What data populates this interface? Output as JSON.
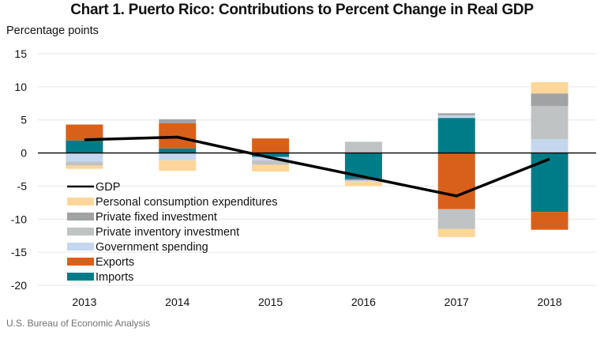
{
  "chart_data": {
    "type": "bar",
    "subtype": "stacked-bar-with-line",
    "title": "Chart 1. Puerto Rico: Contributions to Percent Change in Real GDP",
    "ylabel": "Percentage points",
    "xlabel": "",
    "source": "U.S. Bureau of Economic Analysis",
    "ylim": [
      -20,
      15
    ],
    "yticks": [
      15,
      10,
      5,
      0,
      -5,
      -10,
      -15,
      -20
    ],
    "grid": true,
    "legend_position": "bottom-left",
    "categories": [
      "2013",
      "2014",
      "2015",
      "2016",
      "2017",
      "2018"
    ],
    "series": [
      {
        "name": "Imports",
        "color": "#007C89",
        "values": [
          1.9,
          0.7,
          -0.6,
          -3.9,
          5.3,
          -8.9
        ]
      },
      {
        "name": "Exports",
        "color": "#D9601A",
        "values": [
          2.4,
          3.8,
          2.2,
          -0.2,
          -8.5,
          -2.7
        ]
      },
      {
        "name": "Government spending",
        "color": "#C5D7EE",
        "values": [
          -1.3,
          -1.1,
          -0.5,
          -0.3,
          0.4,
          2.1
        ]
      },
      {
        "name": "Private inventory investment",
        "color": "#C0C3C3",
        "values": [
          -0.6,
          0.0,
          -0.7,
          1.7,
          -3.0,
          5.0
        ]
      },
      {
        "name": "Private fixed investment",
        "color": "#A0A2A3",
        "values": [
          0.0,
          0.6,
          0.0,
          0.0,
          0.3,
          1.9
        ]
      },
      {
        "name": "Personal consumption expenditures",
        "color": "#FFD699",
        "values": [
          -0.5,
          -1.6,
          -1.0,
          -0.6,
          -1.2,
          1.7
        ]
      }
    ],
    "line": {
      "name": "GDP",
      "color": "#000000",
      "values": [
        2.0,
        2.4,
        -0.7,
        -3.6,
        -6.5,
        -0.9
      ]
    },
    "legend": [
      {
        "name": "GDP",
        "kind": "line",
        "color": "#000000"
      },
      {
        "name": "Personal consumption expenditures",
        "kind": "box",
        "color": "#FFD699"
      },
      {
        "name": "Private fixed investment",
        "kind": "box",
        "color": "#A0A2A3"
      },
      {
        "name": "Private inventory investment",
        "kind": "box",
        "color": "#C0C3C3"
      },
      {
        "name": "Government spending",
        "kind": "box",
        "color": "#C5D7EE"
      },
      {
        "name": "Exports",
        "kind": "box",
        "color": "#D9601A"
      },
      {
        "name": "Imports",
        "kind": "box",
        "color": "#007C89"
      }
    ]
  }
}
